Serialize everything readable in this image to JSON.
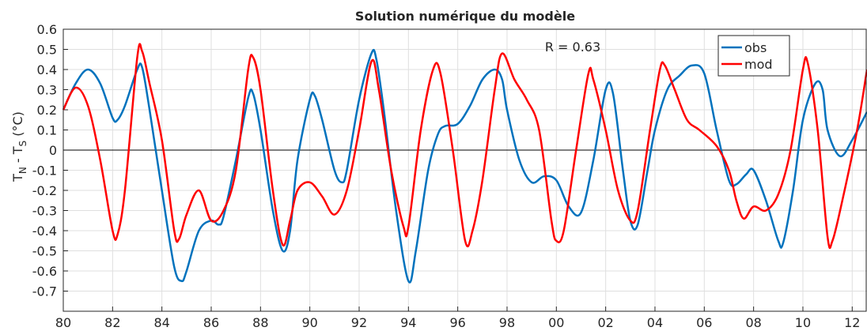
{
  "chart_data": {
    "type": "line",
    "title": "Solution numérique du modèle",
    "ylabel": [
      "T",
      "N",
      " - T",
      "S",
      " (°C)"
    ],
    "annotation": "R = 0.63",
    "xlim": [
      1980,
      2012.6
    ],
    "ylim": [
      -0.8,
      0.6
    ],
    "xticks": [
      {
        "value": 1980,
        "label": "80"
      },
      {
        "value": 1982,
        "label": "82"
      },
      {
        "value": 1984,
        "label": "84"
      },
      {
        "value": 1986,
        "label": "86"
      },
      {
        "value": 1988,
        "label": "88"
      },
      {
        "value": 1990,
        "label": "90"
      },
      {
        "value": 1992,
        "label": "92"
      },
      {
        "value": 1994,
        "label": "94"
      },
      {
        "value": 1996,
        "label": "96"
      },
      {
        "value": 1998,
        "label": "98"
      },
      {
        "value": 2000,
        "label": "00"
      },
      {
        "value": 2002,
        "label": "02"
      },
      {
        "value": 2004,
        "label": "04"
      },
      {
        "value": 2006,
        "label": "06"
      },
      {
        "value": 2008,
        "label": "08"
      },
      {
        "value": 2010,
        "label": "10"
      },
      {
        "value": 2012,
        "label": "12"
      }
    ],
    "yticks": [
      0.6,
      0.5,
      0.4,
      0.3,
      0.2,
      0.1,
      0,
      -0.1,
      -0.2,
      -0.3,
      -0.4,
      -0.5,
      -0.6,
      -0.7
    ],
    "grid": true,
    "legend": "northeast",
    "series": [
      {
        "name": "obs",
        "color": "#0072bd",
        "x": [
          1980,
          1980.5,
          1981,
          1981.5,
          1982,
          1982.2,
          1982.5,
          1983,
          1983.2,
          1983.5,
          1984,
          1984.5,
          1984.8,
          1985,
          1985.5,
          1986,
          1986.3,
          1986.5,
          1987,
          1987.5,
          1987.7,
          1988,
          1988.5,
          1988.9,
          1989.2,
          1989.5,
          1990,
          1990.2,
          1990.5,
          1991,
          1991.3,
          1991.5,
          1992,
          1992.5,
          1992.7,
          1993,
          1993.5,
          1994,
          1994.3,
          1994.8,
          1995.2,
          1995.5,
          1996,
          1996.5,
          1997,
          1997.5,
          1997.8,
          1998,
          1998.5,
          1999,
          1999.5,
          2000,
          2000.5,
          2001,
          2001.5,
          2002,
          2002.3,
          2002.7,
          2003,
          2003.3,
          2003.7,
          2004,
          2004.5,
          2005,
          2005.5,
          2006,
          2006.5,
          2007,
          2007.3,
          2007.7,
          2008,
          2008.5,
          2009,
          2009.2,
          2009.6,
          2010,
          2010.5,
          2010.8,
          2011,
          2011.5,
          2012,
          2012.6
        ],
        "values": [
          0.2,
          0.33,
          0.4,
          0.33,
          0.16,
          0.15,
          0.22,
          0.4,
          0.41,
          0.2,
          -0.2,
          -0.58,
          -0.65,
          -0.6,
          -0.4,
          -0.35,
          -0.37,
          -0.33,
          -0.05,
          0.26,
          0.28,
          0.1,
          -0.3,
          -0.5,
          -0.4,
          -0.05,
          0.25,
          0.27,
          0.15,
          -0.1,
          -0.16,
          -0.1,
          0.25,
          0.48,
          0.45,
          0.2,
          -0.3,
          -0.65,
          -0.5,
          -0.1,
          0.08,
          0.12,
          0.13,
          0.22,
          0.35,
          0.4,
          0.35,
          0.2,
          -0.05,
          -0.16,
          -0.13,
          -0.15,
          -0.28,
          -0.31,
          -0.05,
          0.3,
          0.28,
          -0.1,
          -0.35,
          -0.37,
          -0.1,
          0.1,
          0.3,
          0.37,
          0.42,
          0.38,
          0.1,
          -0.15,
          -0.17,
          -0.12,
          -0.1,
          -0.25,
          -0.45,
          -0.46,
          -0.2,
          0.15,
          0.33,
          0.3,
          0.1,
          -0.03,
          0.05,
          0.19
        ]
      },
      {
        "name": "mod",
        "color": "#ff0000",
        "x": [
          1980,
          1980.5,
          1981,
          1981.5,
          1982,
          1982.2,
          1982.5,
          1983,
          1983.2,
          1983.5,
          1984,
          1984.5,
          1984.7,
          1985,
          1985.5,
          1986,
          1986.5,
          1987,
          1987.5,
          1987.7,
          1988,
          1988.5,
          1988.9,
          1989.2,
          1989.5,
          1990,
          1990.5,
          1991,
          1991.5,
          1992,
          1992.5,
          1992.8,
          1993.3,
          1993.8,
          1994,
          1994.5,
          1995,
          1995.3,
          1995.8,
          1996.3,
          1996.6,
          1997,
          1997.5,
          1997.8,
          1998.3,
          1998.8,
          1999.3,
          1999.8,
          2000,
          2000.3,
          2000.8,
          2001.3,
          2001.5,
          2002,
          2002.5,
          2003,
          2003.3,
          2003.8,
          2004.2,
          2004.4,
          2004.8,
          2005.3,
          2005.8,
          2006.5,
          2007,
          2007.3,
          2007.6,
          2008,
          2008.5,
          2009,
          2009.5,
          2010,
          2010.2,
          2010.6,
          2011,
          2011.2,
          2011.6,
          2012.2,
          2012.6
        ],
        "values": [
          0.2,
          0.31,
          0.22,
          -0.05,
          -0.4,
          -0.42,
          -0.2,
          0.46,
          0.49,
          0.33,
          0.05,
          -0.4,
          -0.44,
          -0.32,
          -0.2,
          -0.35,
          -0.3,
          -0.1,
          0.4,
          0.46,
          0.3,
          -0.2,
          -0.47,
          -0.35,
          -0.2,
          -0.16,
          -0.23,
          -0.32,
          -0.2,
          0.1,
          0.44,
          0.3,
          -0.1,
          -0.38,
          -0.38,
          0.1,
          0.4,
          0.38,
          0,
          -0.45,
          -0.4,
          -0.15,
          0.3,
          0.48,
          0.35,
          0.25,
          0.1,
          -0.35,
          -0.45,
          -0.4,
          0,
          0.38,
          0.35,
          0.1,
          -0.2,
          -0.35,
          -0.3,
          0.1,
          0.4,
          0.42,
          0.3,
          0.15,
          0.1,
          0.02,
          -0.1,
          -0.25,
          -0.34,
          -0.28,
          -0.3,
          -0.22,
          0,
          0.4,
          0.43,
          0.1,
          -0.43,
          -0.45,
          -0.25,
          0.1,
          0.4
        ]
      }
    ]
  }
}
